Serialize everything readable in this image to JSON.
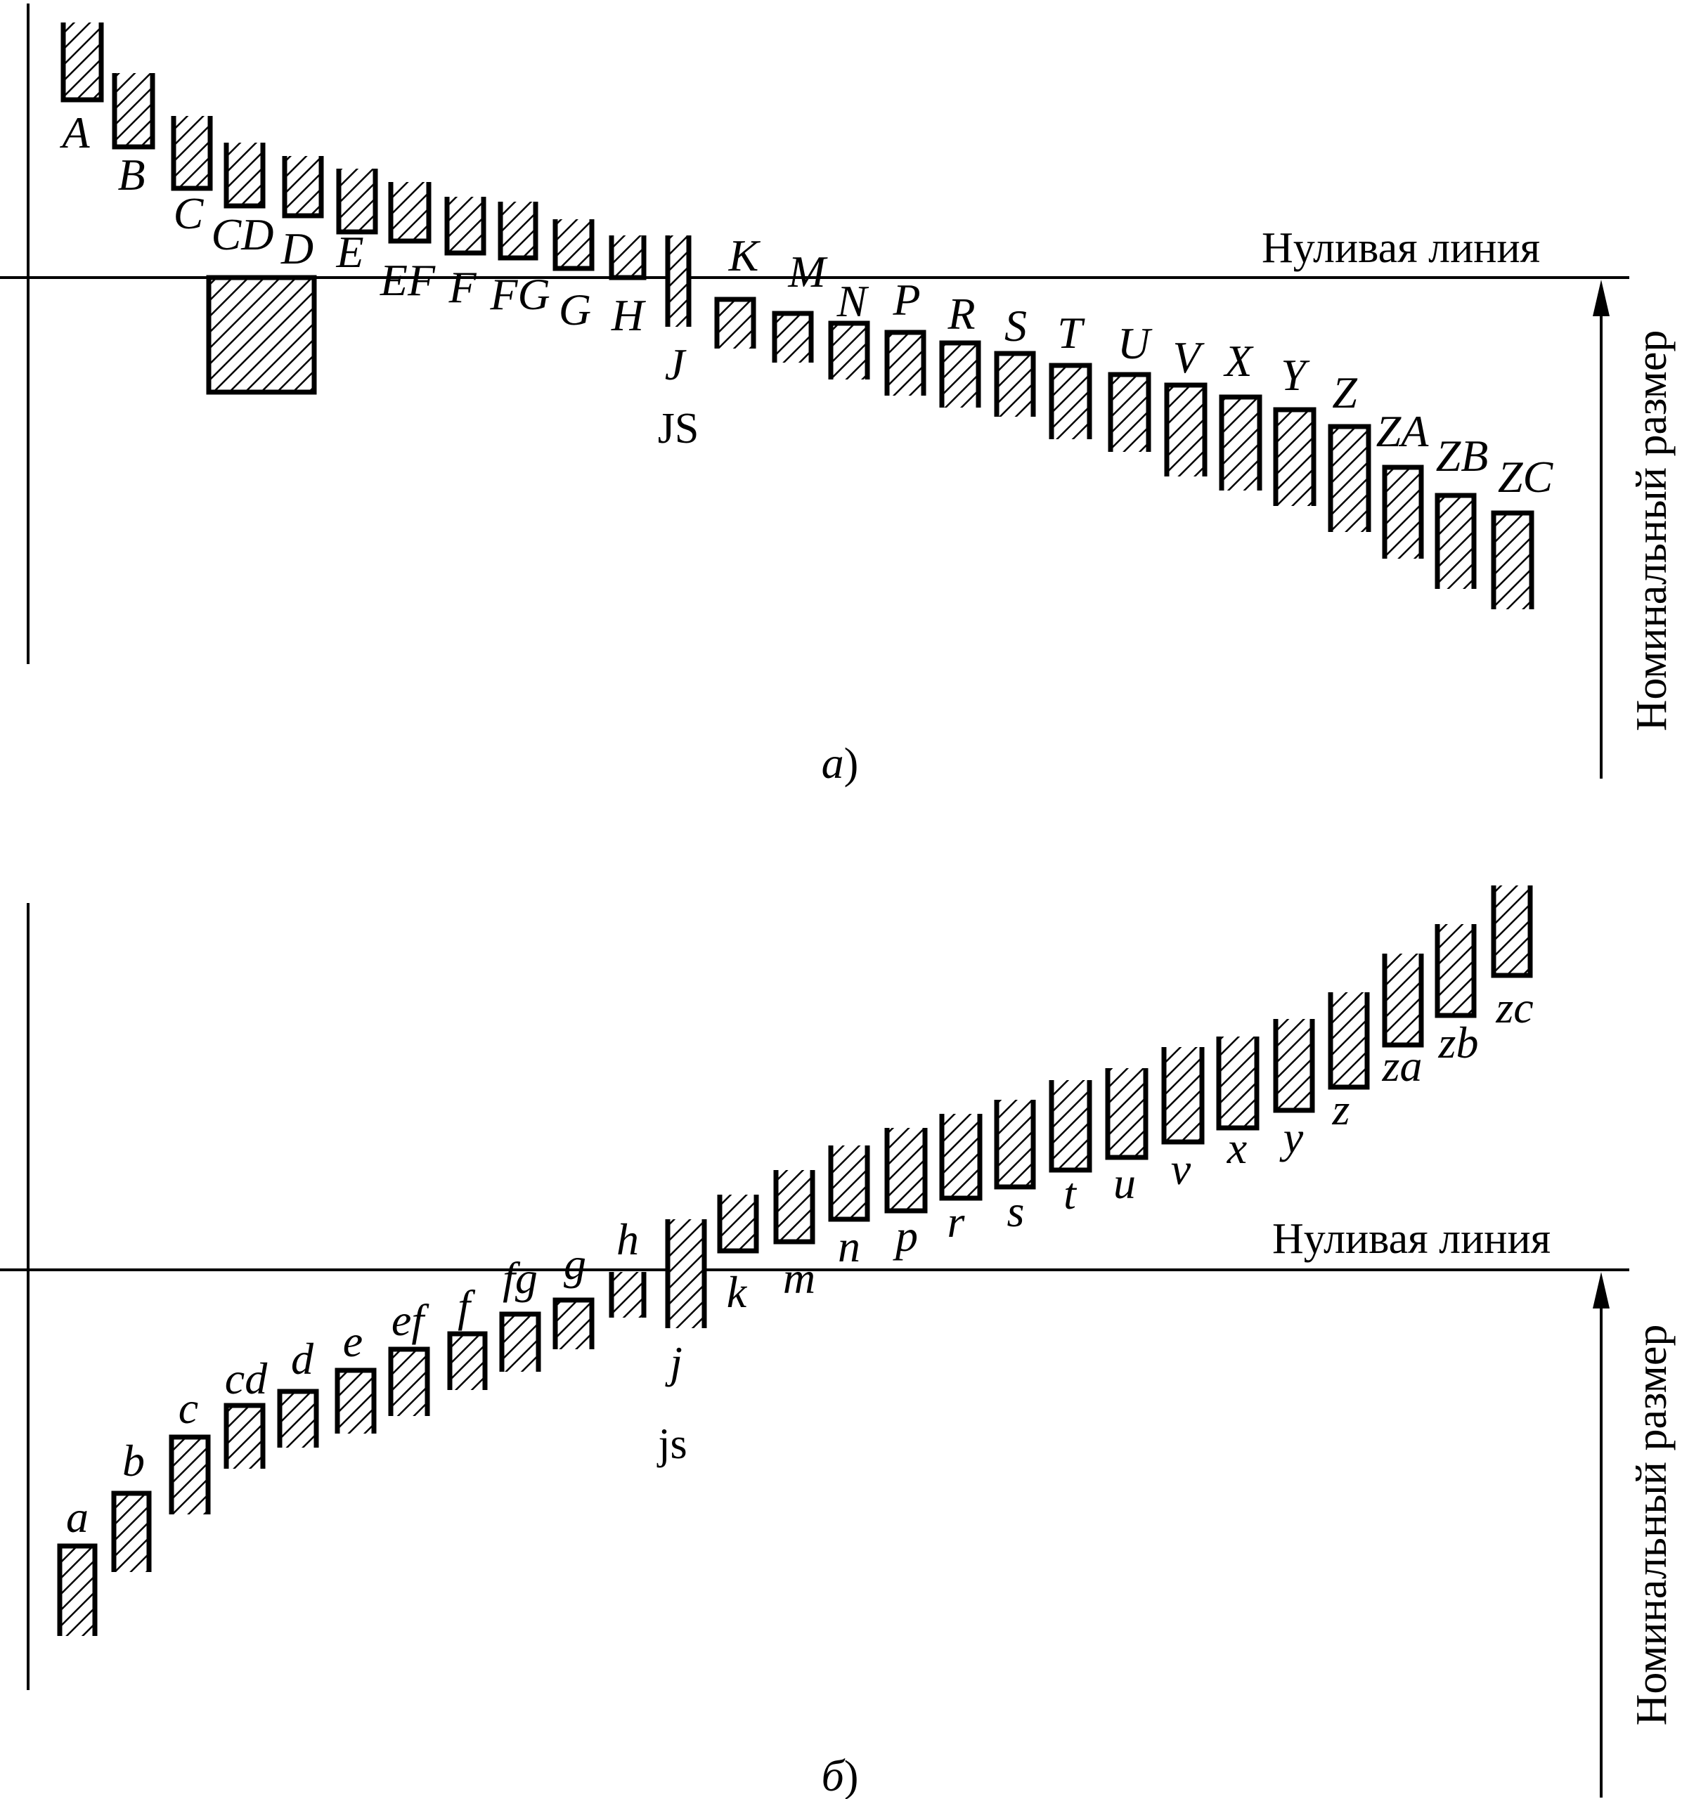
{
  "panel_a": {
    "zero_line_label": "Нуливая линия",
    "axis_label": "Номинальный размер",
    "caption_letter": "а",
    "caption_paren": ")",
    "js_label": "JS",
    "fields": [
      {
        "label": "A"
      },
      {
        "label": "B"
      },
      {
        "label": "C"
      },
      {
        "label": "CD"
      },
      {
        "label": "D"
      },
      {
        "label": "E"
      },
      {
        "label": "EF"
      },
      {
        "label": "F"
      },
      {
        "label": "FG"
      },
      {
        "label": "G"
      },
      {
        "label": "H"
      },
      {
        "label": "J"
      },
      {
        "label": "K"
      },
      {
        "label": "M"
      },
      {
        "label": "N"
      },
      {
        "label": "P"
      },
      {
        "label": "R"
      },
      {
        "label": "S"
      },
      {
        "label": "T"
      },
      {
        "label": "U"
      },
      {
        "label": "V"
      },
      {
        "label": "X"
      },
      {
        "label": "Y"
      },
      {
        "label": "Z"
      },
      {
        "label": "ZA"
      },
      {
        "label": "ZB"
      },
      {
        "label": "ZC"
      }
    ]
  },
  "panel_b": {
    "zero_line_label": "Нуливая линия",
    "axis_label": "Номинальный размер",
    "caption_letter": "б",
    "caption_paren": ")",
    "js_label": "js",
    "fields": [
      {
        "label": "a"
      },
      {
        "label": "b"
      },
      {
        "label": "c"
      },
      {
        "label": "cd"
      },
      {
        "label": "d"
      },
      {
        "label": "e"
      },
      {
        "label": "ef"
      },
      {
        "label": "f"
      },
      {
        "label": "fg"
      },
      {
        "label": "g"
      },
      {
        "label": "h"
      },
      {
        "label": "j"
      },
      {
        "label": "k"
      },
      {
        "label": "m"
      },
      {
        "label": "n"
      },
      {
        "label": "p"
      },
      {
        "label": "r"
      },
      {
        "label": "s"
      },
      {
        "label": "t"
      },
      {
        "label": "u"
      },
      {
        "label": "v"
      },
      {
        "label": "x"
      },
      {
        "label": "y"
      },
      {
        "label": "z"
      },
      {
        "label": "za"
      },
      {
        "label": "zb"
      },
      {
        "label": "zc"
      }
    ]
  }
}
